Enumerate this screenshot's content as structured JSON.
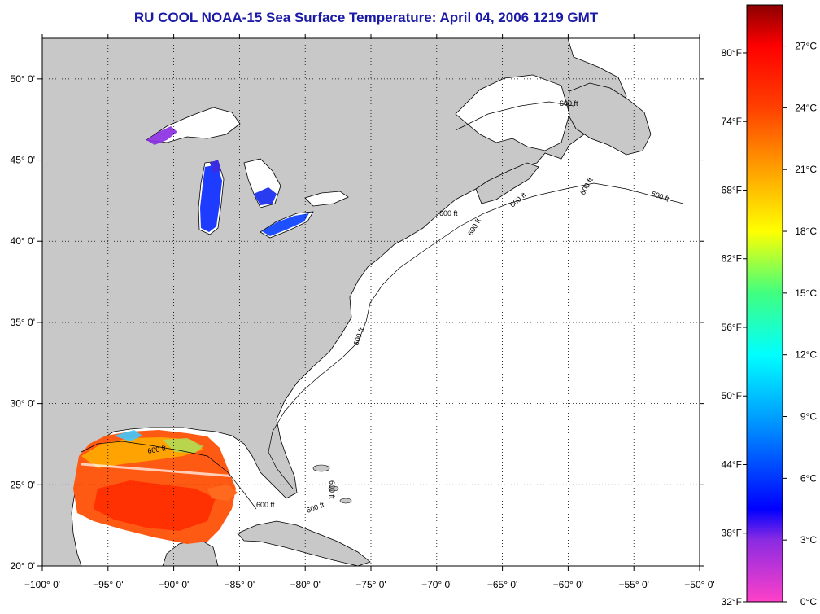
{
  "title": "RU COOL  NOAA-15  Sea Surface Temperature:  April 04, 2006 1219 GMT",
  "map": {
    "lon_range": [
      -100,
      -50
    ],
    "lat_range": [
      20,
      52.5
    ],
    "lon_ticks": [
      {
        "value": -100,
        "label": "−100° 0'"
      },
      {
        "value": -95,
        "label": "−95° 0'"
      },
      {
        "value": -90,
        "label": "−90° 0'"
      },
      {
        "value": -85,
        "label": "−85° 0'"
      },
      {
        "value": -80,
        "label": "−80° 0'"
      },
      {
        "value": -75,
        "label": "−75° 0'"
      },
      {
        "value": -70,
        "label": "−70° 0'"
      },
      {
        "value": -65,
        "label": "−65° 0'"
      },
      {
        "value": -60,
        "label": "−60° 0'"
      },
      {
        "value": -55,
        "label": "−55° 0'"
      },
      {
        "value": -50,
        "label": "−50° 0'"
      }
    ],
    "lat_ticks": [
      {
        "value": 20,
        "label": "20° 0'"
      },
      {
        "value": 25,
        "label": "25° 0'"
      },
      {
        "value": 30,
        "label": "30° 0'"
      },
      {
        "value": 35,
        "label": "35° 0'"
      },
      {
        "value": 40,
        "label": "40° 0'"
      },
      {
        "value": 45,
        "label": "45° 0'"
      },
      {
        "value": 50,
        "label": "50° 0'"
      }
    ],
    "contour_label": "600 ft",
    "grid": "dotted",
    "land_color": "#c8c8c8",
    "water_color": "#ffffff"
  },
  "colorbar": {
    "range_c": [
      0,
      29
    ],
    "celsius_ticks": [
      {
        "value": 0,
        "label": "0°C"
      },
      {
        "value": 3,
        "label": "3°C"
      },
      {
        "value": 6,
        "label": "6°C"
      },
      {
        "value": 9,
        "label": "9°C"
      },
      {
        "value": 12,
        "label": "12°C"
      },
      {
        "value": 15,
        "label": "15°C"
      },
      {
        "value": 18,
        "label": "18°C"
      },
      {
        "value": 21,
        "label": "21°C"
      },
      {
        "value": 24,
        "label": "24°C"
      },
      {
        "value": 27,
        "label": "27°C"
      }
    ],
    "fahrenheit_ticks": [
      {
        "value": 32,
        "label": "32°F"
      },
      {
        "value": 38,
        "label": "38°F"
      },
      {
        "value": 44,
        "label": "44°F"
      },
      {
        "value": 50,
        "label": "50°F"
      },
      {
        "value": 56,
        "label": "56°F"
      },
      {
        "value": 62,
        "label": "62°F"
      },
      {
        "value": 68,
        "label": "68°F"
      },
      {
        "value": 74,
        "label": "74°F"
      },
      {
        "value": 80,
        "label": "80°F"
      }
    ],
    "stops": [
      {
        "c": 0,
        "color": "#ff40c8"
      },
      {
        "c": 3,
        "color": "#8a2be2"
      },
      {
        "c": 4.5,
        "color": "#0000ff"
      },
      {
        "c": 9,
        "color": "#00a0ff"
      },
      {
        "c": 12,
        "color": "#00ffff"
      },
      {
        "c": 15,
        "color": "#40ff80"
      },
      {
        "c": 18,
        "color": "#ffff00"
      },
      {
        "c": 21,
        "color": "#ffa000"
      },
      {
        "c": 24,
        "color": "#ff4000"
      },
      {
        "c": 27,
        "color": "#ff0000"
      },
      {
        "c": 29,
        "color": "#8b0000"
      }
    ]
  }
}
